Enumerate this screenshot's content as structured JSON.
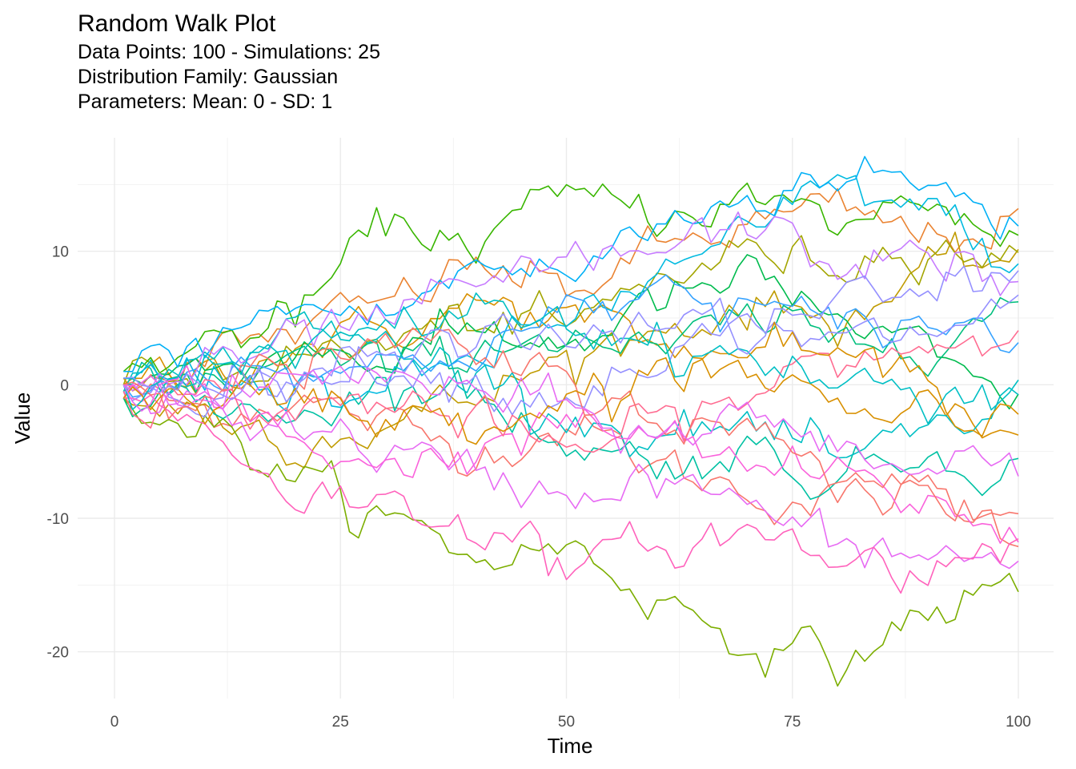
{
  "chart_data": {
    "type": "line",
    "title": "Random Walk Plot",
    "subtitle": [
      "Data Points: 100 - Simulations: 25",
      "Distribution Family: Gaussian",
      "Parameters: Mean: 0 - SD: 1"
    ],
    "xlabel": "Time",
    "ylabel": "Value",
    "xlim": [
      0,
      100
    ],
    "ylim": [
      -23.5,
      18.5
    ],
    "x_ticks": [
      0,
      25,
      50,
      75,
      100
    ],
    "y_ticks": [
      -20,
      -10,
      0,
      10
    ],
    "grid": true,
    "legend": "none",
    "series": [
      {
        "color": "#F8766D",
        "points": [
          [
            1,
            -0.5
          ],
          [
            10,
            -2
          ],
          [
            20,
            -1
          ],
          [
            30,
            -3
          ],
          [
            40,
            -5
          ],
          [
            50,
            -3
          ],
          [
            60,
            -6
          ],
          [
            70,
            -8
          ],
          [
            80,
            -9
          ],
          [
            90,
            -8
          ],
          [
            100,
            -11
          ]
        ]
      },
      {
        "color": "#EA8331",
        "points": [
          [
            1,
            0.5
          ],
          [
            10,
            2
          ],
          [
            20,
            4
          ],
          [
            30,
            6
          ],
          [
            40,
            9
          ],
          [
            50,
            7
          ],
          [
            60,
            10
          ],
          [
            70,
            12
          ],
          [
            80,
            13
          ],
          [
            90,
            11
          ],
          [
            100,
            12
          ]
        ]
      },
      {
        "color": "#D89000",
        "points": [
          [
            1,
            0
          ],
          [
            10,
            1
          ],
          [
            20,
            3
          ],
          [
            30,
            4
          ],
          [
            40,
            6
          ],
          [
            50,
            5
          ],
          [
            60,
            3
          ],
          [
            70,
            1
          ],
          [
            80,
            -2
          ],
          [
            90,
            -1
          ],
          [
            100,
            -4
          ]
        ]
      },
      {
        "color": "#C09B00",
        "points": [
          [
            1,
            -1
          ],
          [
            10,
            -2
          ],
          [
            20,
            -4
          ],
          [
            30,
            -3
          ],
          [
            40,
            -1
          ],
          [
            50,
            2
          ],
          [
            60,
            4
          ],
          [
            70,
            6
          ],
          [
            80,
            5
          ],
          [
            90,
            8
          ],
          [
            100,
            10
          ]
        ]
      },
      {
        "color": "#A3A500",
        "points": [
          [
            1,
            0
          ],
          [
            10,
            1
          ],
          [
            20,
            2
          ],
          [
            30,
            3
          ],
          [
            40,
            5
          ],
          [
            50,
            4
          ],
          [
            60,
            8
          ],
          [
            70,
            10
          ],
          [
            80,
            9
          ],
          [
            90,
            11
          ],
          [
            100,
            9
          ]
        ]
      },
      {
        "color": "#7CAE00",
        "points": [
          [
            1,
            -1
          ],
          [
            10,
            -3
          ],
          [
            20,
            -7
          ],
          [
            30,
            -10
          ],
          [
            40,
            -13
          ],
          [
            50,
            -12
          ],
          [
            60,
            -16
          ],
          [
            70,
            -19
          ],
          [
            80,
            -21
          ],
          [
            90,
            -17
          ],
          [
            100,
            -15
          ]
        ]
      },
      {
        "color": "#39B600",
        "points": [
          [
            1,
            1
          ],
          [
            10,
            3
          ],
          [
            20,
            5
          ],
          [
            30,
            12
          ],
          [
            40,
            11
          ],
          [
            50,
            14
          ],
          [
            60,
            13
          ],
          [
            70,
            14
          ],
          [
            80,
            12
          ],
          [
            90,
            14
          ],
          [
            100,
            11
          ]
        ]
      },
      {
        "color": "#00BB4E",
        "points": [
          [
            1,
            0.5
          ],
          [
            10,
            1
          ],
          [
            20,
            3
          ],
          [
            30,
            2
          ],
          [
            40,
            4
          ],
          [
            50,
            3
          ],
          [
            60,
            6
          ],
          [
            70,
            8
          ],
          [
            80,
            5
          ],
          [
            90,
            2
          ],
          [
            100,
            -2
          ]
        ]
      },
      {
        "color": "#00BF7D",
        "points": [
          [
            1,
            -1
          ],
          [
            10,
            0
          ],
          [
            20,
            2
          ],
          [
            30,
            1
          ],
          [
            40,
            3
          ],
          [
            50,
            4
          ],
          [
            60,
            2
          ],
          [
            70,
            5
          ],
          [
            80,
            3
          ],
          [
            90,
            4
          ],
          [
            100,
            6
          ]
        ]
      },
      {
        "color": "#00C1A3",
        "points": [
          [
            1,
            0
          ],
          [
            10,
            -1
          ],
          [
            20,
            -2
          ],
          [
            30,
            0
          ],
          [
            40,
            -1
          ],
          [
            50,
            -4
          ],
          [
            60,
            -6
          ],
          [
            70,
            -5
          ],
          [
            80,
            -7
          ],
          [
            90,
            -5
          ],
          [
            100,
            -6
          ]
        ]
      },
      {
        "color": "#00BFC4",
        "points": [
          [
            1,
            -0.5
          ],
          [
            10,
            2
          ],
          [
            20,
            4
          ],
          [
            30,
            3
          ],
          [
            40,
            1
          ],
          [
            50,
            -2
          ],
          [
            60,
            -4
          ],
          [
            70,
            -3
          ],
          [
            80,
            -6
          ],
          [
            90,
            -4
          ],
          [
            100,
            -1
          ]
        ]
      },
      {
        "color": "#00BAE0",
        "points": [
          [
            1,
            0.5
          ],
          [
            10,
            1
          ],
          [
            20,
            0
          ],
          [
            30,
            -1
          ],
          [
            40,
            2
          ],
          [
            50,
            5
          ],
          [
            60,
            8
          ],
          [
            70,
            11
          ],
          [
            80,
            15
          ],
          [
            90,
            13
          ],
          [
            100,
            9
          ]
        ]
      },
      {
        "color": "#00B0F6",
        "points": [
          [
            1,
            1
          ],
          [
            10,
            3
          ],
          [
            20,
            6
          ],
          [
            30,
            5
          ],
          [
            40,
            9
          ],
          [
            50,
            8
          ],
          [
            60,
            12
          ],
          [
            70,
            14
          ],
          [
            80,
            16
          ],
          [
            90,
            15
          ],
          [
            100,
            12
          ]
        ]
      },
      {
        "color": "#35A2FF",
        "points": [
          [
            1,
            0
          ],
          [
            10,
            1
          ],
          [
            20,
            2
          ],
          [
            30,
            1
          ],
          [
            40,
            3
          ],
          [
            50,
            5
          ],
          [
            60,
            7
          ],
          [
            70,
            6
          ],
          [
            80,
            4
          ],
          [
            90,
            5
          ],
          [
            100,
            3
          ]
        ]
      },
      {
        "color": "#9590FF",
        "points": [
          [
            1,
            -0.5
          ],
          [
            10,
            0
          ],
          [
            20,
            1
          ],
          [
            30,
            2
          ],
          [
            40,
            0
          ],
          [
            50,
            -1
          ],
          [
            60,
            2
          ],
          [
            70,
            4
          ],
          [
            80,
            3
          ],
          [
            90,
            4
          ],
          [
            100,
            6
          ]
        ]
      },
      {
        "color": "#C77CFF",
        "points": [
          [
            1,
            0
          ],
          [
            10,
            1
          ],
          [
            20,
            3
          ],
          [
            30,
            5
          ],
          [
            40,
            7
          ],
          [
            50,
            9
          ],
          [
            60,
            10
          ],
          [
            70,
            12
          ],
          [
            80,
            9
          ],
          [
            90,
            10
          ],
          [
            100,
            7
          ]
        ]
      },
      {
        "color": "#E76BF3",
        "points": [
          [
            1,
            -1
          ],
          [
            10,
            -2
          ],
          [
            20,
            -3
          ],
          [
            30,
            -5
          ],
          [
            40,
            -7
          ],
          [
            50,
            -8
          ],
          [
            60,
            -7
          ],
          [
            70,
            -9
          ],
          [
            80,
            -12
          ],
          [
            90,
            -13
          ],
          [
            100,
            -13
          ]
        ]
      },
      {
        "color": "#FA62DB",
        "points": [
          [
            1,
            0
          ],
          [
            10,
            -1
          ],
          [
            20,
            -4
          ],
          [
            30,
            -6
          ],
          [
            40,
            -5
          ],
          [
            50,
            -3
          ],
          [
            60,
            -4
          ],
          [
            70,
            -6
          ],
          [
            80,
            -7
          ],
          [
            90,
            -9
          ],
          [
            100,
            -11
          ]
        ]
      },
      {
        "color": "#FF62BC",
        "points": [
          [
            1,
            -1
          ],
          [
            10,
            -3
          ],
          [
            20,
            -8
          ],
          [
            30,
            -9
          ],
          [
            40,
            -10
          ],
          [
            50,
            -14
          ],
          [
            60,
            -12
          ],
          [
            70,
            -11
          ],
          [
            80,
            -13
          ],
          [
            90,
            -14
          ],
          [
            100,
            -11
          ]
        ]
      },
      {
        "color": "#FF6C91",
        "points": [
          [
            1,
            -0.5
          ],
          [
            10,
            -1
          ],
          [
            20,
            -2
          ],
          [
            30,
            -1
          ],
          [
            40,
            -3
          ],
          [
            50,
            -5
          ],
          [
            60,
            -3
          ],
          [
            70,
            -1
          ],
          [
            80,
            2
          ],
          [
            90,
            3
          ],
          [
            100,
            4
          ]
        ]
      },
      {
        "color": "#F8766D",
        "points": [
          [
            1,
            0
          ],
          [
            10,
            0.5
          ],
          [
            20,
            1
          ],
          [
            30,
            3
          ],
          [
            40,
            2
          ],
          [
            50,
            0
          ],
          [
            60,
            -2
          ],
          [
            70,
            -4
          ],
          [
            80,
            -6
          ],
          [
            90,
            -8
          ],
          [
            100,
            -10
          ]
        ]
      },
      {
        "color": "#D89000",
        "points": [
          [
            1,
            -1
          ],
          [
            10,
            0
          ],
          [
            20,
            -1
          ],
          [
            30,
            -3
          ],
          [
            40,
            -2
          ],
          [
            50,
            -1
          ],
          [
            60,
            1
          ],
          [
            70,
            3
          ],
          [
            80,
            2
          ],
          [
            90,
            0
          ],
          [
            100,
            -2
          ]
        ]
      },
      {
        "color": "#00BFC4",
        "points": [
          [
            1,
            0
          ],
          [
            10,
            1
          ],
          [
            20,
            2
          ],
          [
            30,
            4
          ],
          [
            40,
            6
          ],
          [
            50,
            5
          ],
          [
            60,
            3
          ],
          [
            70,
            2
          ],
          [
            80,
            0
          ],
          [
            90,
            -1
          ],
          [
            100,
            0
          ]
        ]
      },
      {
        "color": "#9590FF",
        "points": [
          [
            1,
            0.5
          ],
          [
            10,
            0
          ],
          [
            20,
            -1
          ],
          [
            30,
            2
          ],
          [
            40,
            4
          ],
          [
            50,
            3
          ],
          [
            60,
            5
          ],
          [
            70,
            4
          ],
          [
            80,
            6
          ],
          [
            90,
            7
          ],
          [
            100,
            8
          ]
        ]
      },
      {
        "color": "#E76BF3",
        "points": [
          [
            1,
            0
          ],
          [
            10,
            -1
          ],
          [
            20,
            0
          ],
          [
            30,
            1
          ],
          [
            40,
            -1
          ],
          [
            50,
            -2
          ],
          [
            60,
            -4
          ],
          [
            70,
            -2
          ],
          [
            80,
            -5
          ],
          [
            90,
            -6
          ],
          [
            100,
            -5
          ]
        ]
      }
    ]
  }
}
